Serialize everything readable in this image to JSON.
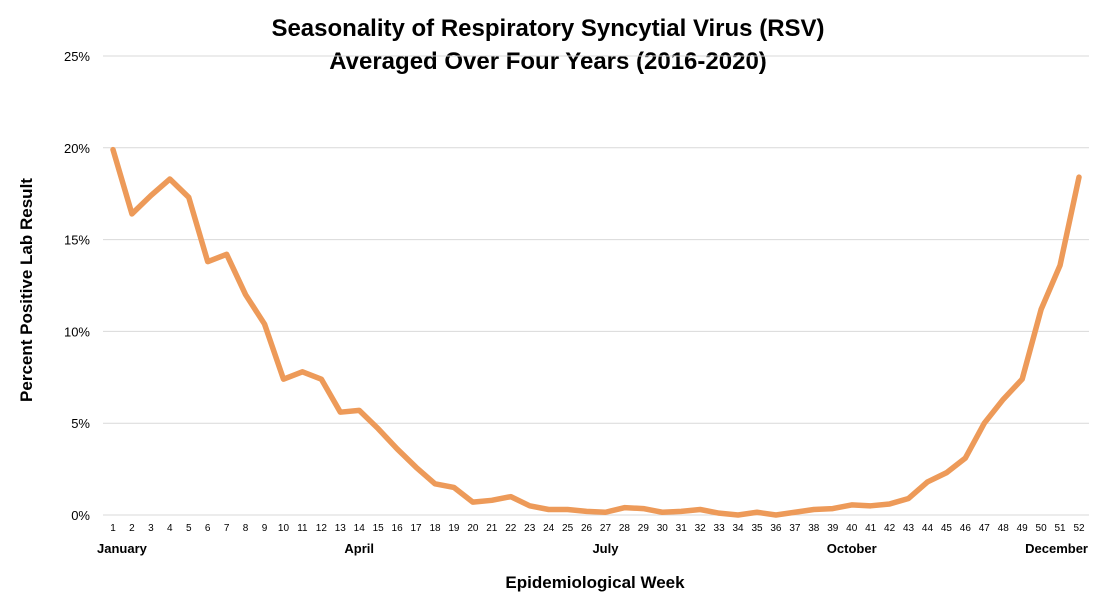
{
  "chart_data": {
    "type": "line",
    "title_line1": "Seasonality of Respiratory Syncytial Virus (RSV)",
    "title_line2": "Averaged Over Four Years (2016-2020)",
    "xlabel": "Epidemiological Week",
    "ylabel": "Percent Positive Lab Result",
    "ylim": [
      0,
      25
    ],
    "yticks": [
      "0%",
      "5%",
      "10%",
      "15%",
      "20%",
      "25%"
    ],
    "grid": true,
    "legend": "none",
    "x": [
      1,
      2,
      3,
      4,
      5,
      6,
      7,
      8,
      9,
      10,
      11,
      12,
      13,
      14,
      15,
      16,
      17,
      18,
      19,
      20,
      21,
      22,
      23,
      24,
      25,
      26,
      27,
      28,
      29,
      30,
      31,
      32,
      33,
      34,
      35,
      36,
      37,
      38,
      39,
      40,
      41,
      42,
      43,
      44,
      45,
      46,
      47,
      48,
      49,
      50,
      51,
      52
    ],
    "x_tick_labels": [
      "1",
      "2",
      "3",
      "4",
      "5",
      "6",
      "7",
      "8",
      "9",
      "10",
      "11",
      "12",
      "13",
      "14",
      "15",
      "16",
      "17",
      "18",
      "19",
      "20",
      "21",
      "22",
      "23",
      "24",
      "25",
      "26",
      "27",
      "28",
      "29",
      "30",
      "31",
      "32",
      "33",
      "34",
      "35",
      "36",
      "37",
      "38",
      "39",
      "40",
      "41",
      "42",
      "43",
      "44",
      "45",
      "46",
      "47",
      "48",
      "49",
      "50",
      "51",
      "52"
    ],
    "month_labels": [
      {
        "week": 1,
        "label": "January"
      },
      {
        "week": 14,
        "label": "April"
      },
      {
        "week": 27,
        "label": "July"
      },
      {
        "week": 40,
        "label": "October"
      },
      {
        "week": 52,
        "label": "December"
      }
    ],
    "series": [
      {
        "color": "#ED9A59",
        "values": [
          19.9,
          16.4,
          17.4,
          18.3,
          17.3,
          13.8,
          14.2,
          12.0,
          10.4,
          7.4,
          7.8,
          7.4,
          5.6,
          5.7,
          4.7,
          3.6,
          2.6,
          1.7,
          1.5,
          0.7,
          0.8,
          1.0,
          0.5,
          0.3,
          0.3,
          0.2,
          0.15,
          0.4,
          0.35,
          0.15,
          0.2,
          0.3,
          0.1,
          0.0,
          0.15,
          0.0,
          0.15,
          0.3,
          0.35,
          0.55,
          0.5,
          0.6,
          0.9,
          1.8,
          2.3,
          3.1,
          5.0,
          6.3,
          7.4,
          11.2,
          13.6,
          18.4
        ]
      }
    ]
  }
}
